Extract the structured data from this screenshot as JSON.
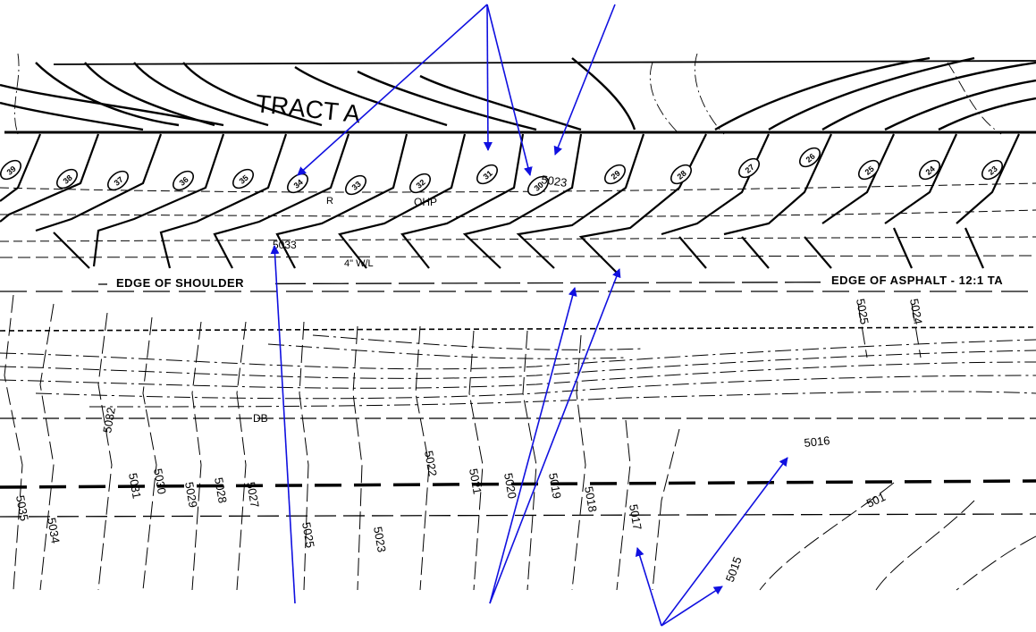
{
  "tract_label": "TRACT A",
  "labels": {
    "edge_of_shoulder": "EDGE OF SHOULDER",
    "edge_of_asphalt": "EDGE OF ASPHALT - 12:1 TA",
    "ohp": "OHP",
    "water_line": "4\" W/L",
    "db": "DB",
    "r": "R"
  },
  "lot_numbers": [
    "39",
    "38",
    "37",
    "36",
    "35",
    "34",
    "33",
    "32",
    "31",
    "30",
    "29",
    "28",
    "27",
    "26",
    "25",
    "24",
    "23"
  ],
  "contours": {
    "e5023_top": "5023",
    "e5033": "5033",
    "e5025_right": "5025",
    "e5024_right": "5024",
    "e5032": "5032",
    "e5031": "5031",
    "e5030": "5030",
    "e5029": "5029",
    "e5028": "5028",
    "e5027": "5027",
    "e5025": "5025",
    "e5023": "5023",
    "e5022": "5022",
    "e5021": "5021",
    "e5020": "5020",
    "e5019": "5019",
    "e5018": "5018",
    "e5017": "5017",
    "e5016": "5016",
    "e5015": "5015",
    "e5014": "501",
    "e5035": "5035",
    "e5034": "5034"
  },
  "colors": {
    "ink": "#000000",
    "arrow": "#1010e0",
    "paper": "#ffffff"
  }
}
